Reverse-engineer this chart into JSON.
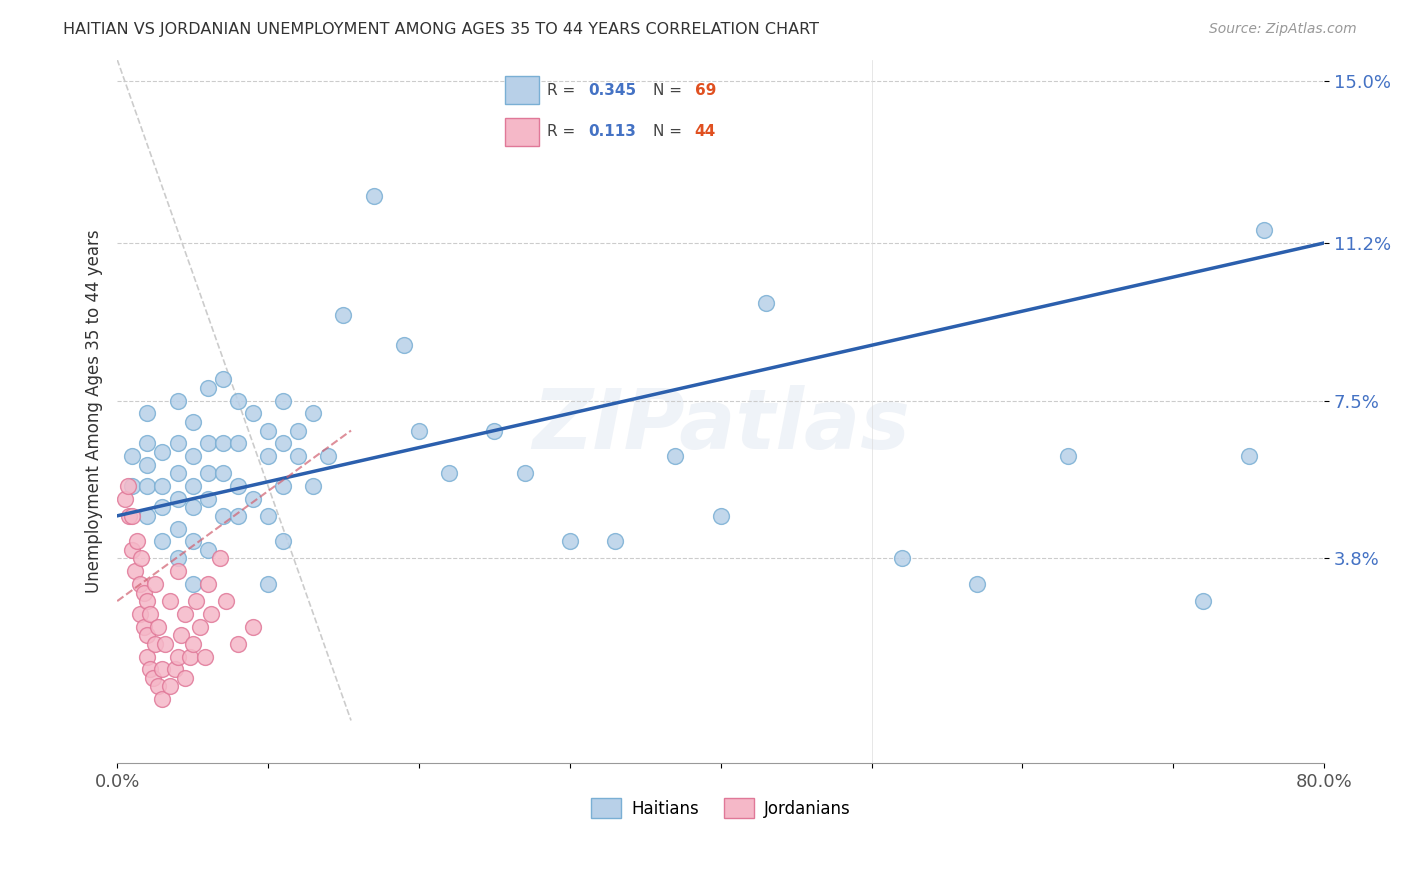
{
  "title": "HAITIAN VS JORDANIAN UNEMPLOYMENT AMONG AGES 35 TO 44 YEARS CORRELATION CHART",
  "source": "Source: ZipAtlas.com",
  "ylabel": "Unemployment Among Ages 35 to 44 years",
  "watermark": "ZIPatlas",
  "haitian_R": "0.345",
  "haitian_N": "69",
  "jordanian_R": "0.113",
  "jordanian_N": "44",
  "xlim": [
    0,
    0.8
  ],
  "ylim": [
    -0.01,
    0.155
  ],
  "yticks": [
    0.038,
    0.075,
    0.112,
    0.15
  ],
  "ytick_labels": [
    "3.8%",
    "7.5%",
    "11.2%",
    "15.0%"
  ],
  "xticks": [
    0.0,
    0.1,
    0.2,
    0.3,
    0.4,
    0.5,
    0.6,
    0.7,
    0.8
  ],
  "xtick_labels": [
    "0.0%",
    "",
    "",
    "",
    "",
    "",
    "",
    "",
    "80.0%"
  ],
  "blue_color": "#b8d0e8",
  "blue_edge": "#7aafd4",
  "pink_color": "#f5b8c8",
  "pink_edge": "#e07898",
  "blue_line_color": "#2b5fad",
  "pink_line_color": "#d06070",
  "ref_line_color": "#cccccc",
  "haitian_x": [
    0.01,
    0.01,
    0.02,
    0.02,
    0.02,
    0.02,
    0.02,
    0.03,
    0.03,
    0.03,
    0.03,
    0.04,
    0.04,
    0.04,
    0.04,
    0.04,
    0.04,
    0.05,
    0.05,
    0.05,
    0.05,
    0.05,
    0.05,
    0.06,
    0.06,
    0.06,
    0.06,
    0.06,
    0.07,
    0.07,
    0.07,
    0.07,
    0.08,
    0.08,
    0.08,
    0.08,
    0.09,
    0.09,
    0.1,
    0.1,
    0.1,
    0.1,
    0.11,
    0.11,
    0.11,
    0.11,
    0.12,
    0.12,
    0.13,
    0.13,
    0.14,
    0.15,
    0.17,
    0.19,
    0.2,
    0.22,
    0.25,
    0.27,
    0.3,
    0.33,
    0.37,
    0.4,
    0.43,
    0.52,
    0.57,
    0.63,
    0.72,
    0.75,
    0.76
  ],
  "haitian_y": [
    0.055,
    0.062,
    0.048,
    0.055,
    0.06,
    0.065,
    0.072,
    0.042,
    0.05,
    0.055,
    0.063,
    0.038,
    0.045,
    0.052,
    0.058,
    0.065,
    0.075,
    0.032,
    0.042,
    0.05,
    0.055,
    0.062,
    0.07,
    0.04,
    0.052,
    0.058,
    0.065,
    0.078,
    0.048,
    0.058,
    0.065,
    0.08,
    0.048,
    0.055,
    0.065,
    0.075,
    0.052,
    0.072,
    0.032,
    0.048,
    0.062,
    0.068,
    0.042,
    0.055,
    0.065,
    0.075,
    0.062,
    0.068,
    0.055,
    0.072,
    0.062,
    0.095,
    0.123,
    0.088,
    0.068,
    0.058,
    0.068,
    0.058,
    0.042,
    0.042,
    0.062,
    0.048,
    0.098,
    0.038,
    0.032,
    0.062,
    0.028,
    0.062,
    0.115
  ],
  "jordanian_x": [
    0.005,
    0.007,
    0.008,
    0.01,
    0.01,
    0.012,
    0.013,
    0.015,
    0.015,
    0.016,
    0.018,
    0.018,
    0.02,
    0.02,
    0.02,
    0.022,
    0.022,
    0.024,
    0.025,
    0.025,
    0.027,
    0.027,
    0.03,
    0.03,
    0.032,
    0.035,
    0.035,
    0.038,
    0.04,
    0.04,
    0.042,
    0.045,
    0.045,
    0.048,
    0.05,
    0.052,
    0.055,
    0.058,
    0.06,
    0.062,
    0.068,
    0.072,
    0.08,
    0.09
  ],
  "jordanian_y": [
    0.052,
    0.055,
    0.048,
    0.04,
    0.048,
    0.035,
    0.042,
    0.025,
    0.032,
    0.038,
    0.022,
    0.03,
    0.015,
    0.02,
    0.028,
    0.012,
    0.025,
    0.01,
    0.018,
    0.032,
    0.008,
    0.022,
    0.005,
    0.012,
    0.018,
    0.008,
    0.028,
    0.012,
    0.015,
    0.035,
    0.02,
    0.01,
    0.025,
    0.015,
    0.018,
    0.028,
    0.022,
    0.015,
    0.032,
    0.025,
    0.038,
    0.028,
    0.018,
    0.022
  ],
  "haitian_line_x0": 0.0,
  "haitian_line_x1": 0.8,
  "haitian_line_y0": 0.048,
  "haitian_line_y1": 0.112,
  "jordanian_line_x0": 0.0,
  "jordanian_line_x1": 0.155,
  "jordanian_line_y0": 0.028,
  "jordanian_line_y1": 0.068,
  "ref_line_x0": 0.0,
  "ref_line_x1": 0.155,
  "ref_line_y0": 0.155,
  "ref_line_y1": 0.0
}
